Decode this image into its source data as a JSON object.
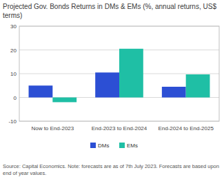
{
  "chart_data": {
    "type": "bar",
    "title": "Projected Gov. Bonds Returns in DMs & EMs (%, annual returns, US$ terms)",
    "source": "Source: Capital Economics. Note: forecasts are as of 7th July 2023. Forecasts are based upon end of year values.",
    "categories": [
      "Now to End-2023",
      "End-2023 to End-2024",
      "End-2024 to End-2025"
    ],
    "series": [
      {
        "name": "DMs",
        "color": "#2c4fd4",
        "values": [
          5,
          10.5,
          4.5
        ]
      },
      {
        "name": "EMs",
        "color": "#1fbfa5",
        "values": [
          -2,
          20.5,
          9.7
        ]
      }
    ],
    "ylim": [
      -10,
      30
    ],
    "yticks": [
      -10,
      0,
      10,
      20,
      30
    ],
    "grid": true,
    "legend": "bottom"
  }
}
